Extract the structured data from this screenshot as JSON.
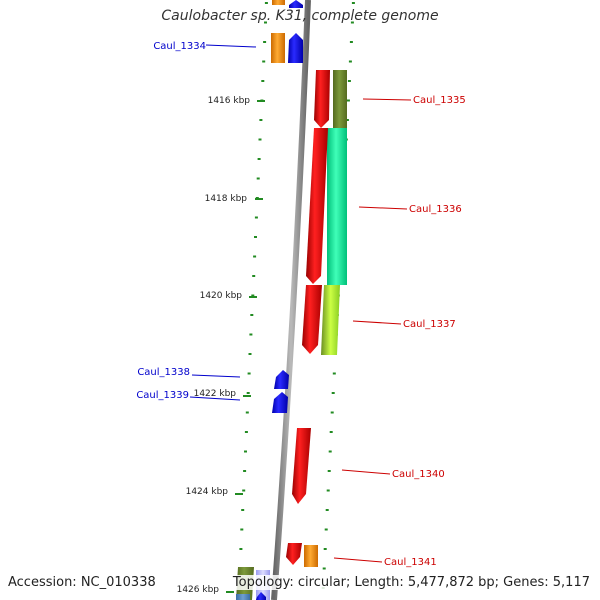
{
  "title": "Caulobacter sp. K31, complete genome",
  "footer": {
    "accession": "Accession: NC_010338",
    "summary": "Topology: circular; Length: 5,477,872 bp; Genes: 5,117"
  },
  "scale_labels": [
    "1416 kbp",
    "1418 kbp",
    "1420 kbp",
    "1422 kbp",
    "1424 kbp",
    "1426 kbp"
  ],
  "genes": [
    {
      "label": "Caul_1334",
      "strand": "-",
      "color": "#0000ee"
    },
    {
      "label": "Caul_1335",
      "strand": "+",
      "color": "#cc0000"
    },
    {
      "label": "Caul_1336",
      "strand": "+",
      "color": "#cc0000"
    },
    {
      "label": "Caul_1337",
      "strand": "+",
      "color": "#cc0000"
    },
    {
      "label": "Caul_1338",
      "strand": "-",
      "color": "#0000ee"
    },
    {
      "label": "Caul_1339",
      "strand": "-",
      "color": "#0000ee"
    },
    {
      "label": "Caul_1340",
      "strand": "+",
      "color": "#cc0000"
    },
    {
      "label": "Caul_1341",
      "strand": "+",
      "color": "#cc0000"
    }
  ],
  "colors": {
    "forward_strand": "#ff0000",
    "reverse_strand": "#0000ff",
    "backbone": "#8c8c8c",
    "tick": "#228b22",
    "cog_olive": "#6b8e23",
    "cog_spring_green": "#00fa9a",
    "cog_green_yellow": "#adff2f",
    "cog_orange": "#ff8c00",
    "cog_light_blue": "#aaaaff"
  }
}
